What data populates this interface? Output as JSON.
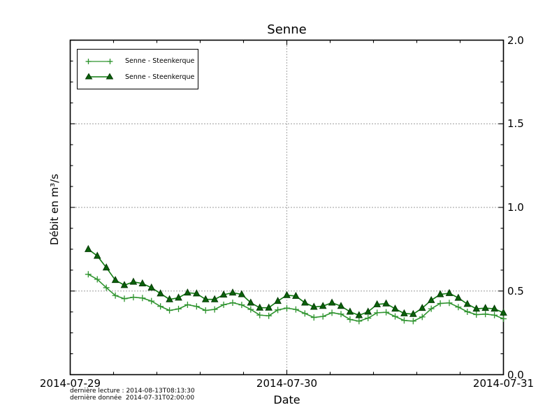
{
  "chart_data": {
    "type": "line",
    "title": "Senne",
    "xlabel": "Date",
    "ylabel": "Débit en m³/s",
    "ylim": [
      0.0,
      2.0
    ],
    "yticks": [
      {
        "value": 0.0,
        "label": "0.0"
      },
      {
        "value": 0.5,
        "label": "0.5"
      },
      {
        "value": 1.0,
        "label": "1.0"
      },
      {
        "value": 1.5,
        "label": "1.5"
      },
      {
        "value": 2.0,
        "label": "2.0"
      }
    ],
    "xlim_hours": [
      0,
      48
    ],
    "xticks": [
      {
        "hour": 0,
        "label": "2014-07-29"
      },
      {
        "hour": 24,
        "label": "2014-07-30"
      },
      {
        "hour": 48,
        "label": "2014-07-31"
      }
    ],
    "minor_ticks": {
      "x_per_day": 5,
      "y_step": 0.125
    },
    "grid": {
      "style": "dotted",
      "y_values": [
        0.5,
        1.0,
        1.5
      ],
      "x_hours": [
        24
      ]
    },
    "legend_position": "upper left",
    "start_hour": 2,
    "step_hours": 1,
    "series": [
      {
        "name": "Senne - Steenkerque",
        "marker": "plus",
        "color": "#2f942f",
        "values": [
          0.6,
          0.57,
          0.52,
          0.473,
          0.454,
          0.463,
          0.458,
          0.44,
          0.408,
          0.384,
          0.393,
          0.418,
          0.408,
          0.384,
          0.39,
          0.418,
          0.43,
          0.417,
          0.39,
          0.356,
          0.352,
          0.387,
          0.398,
          0.39,
          0.366,
          0.342,
          0.348,
          0.37,
          0.362,
          0.33,
          0.32,
          0.338,
          0.37,
          0.373,
          0.348,
          0.324,
          0.32,
          0.345,
          0.394,
          0.426,
          0.429,
          0.404,
          0.376,
          0.359,
          0.362,
          0.356,
          0.334
        ]
      },
      {
        "name": "Senne - Steenkerque",
        "marker": "triangle",
        "color": "#0e7a0e",
        "marker_fill": "#0b610b",
        "marker_edge": "#053b05",
        "values": [
          0.75,
          0.71,
          0.64,
          0.565,
          0.535,
          0.555,
          0.545,
          0.52,
          0.485,
          0.45,
          0.46,
          0.49,
          0.485,
          0.45,
          0.45,
          0.478,
          0.49,
          0.48,
          0.43,
          0.4,
          0.4,
          0.44,
          0.475,
          0.47,
          0.43,
          0.405,
          0.41,
          0.43,
          0.41,
          0.376,
          0.355,
          0.376,
          0.42,
          0.425,
          0.394,
          0.366,
          0.362,
          0.398,
          0.445,
          0.48,
          0.487,
          0.459,
          0.422,
          0.394,
          0.398,
          0.394,
          0.37
        ]
      }
    ],
    "annotations": [
      "dernière lecture : 2014-08-13T08:13:30",
      "dernière donnée  2014-07-31T02:00:00"
    ]
  }
}
